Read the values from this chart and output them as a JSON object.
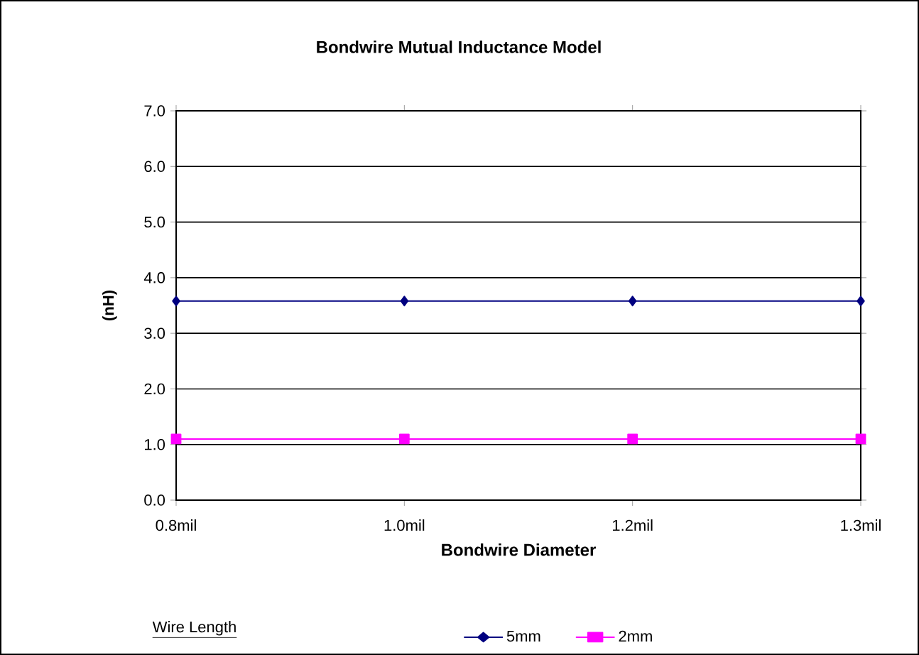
{
  "chart_data": {
    "type": "line",
    "title": "Bondwire Mutual Inductance Model",
    "xlabel": "Bondwire Diameter",
    "ylabel": "(nH)",
    "legend_title": "Wire Length",
    "categories": [
      "0.8mil",
      "1.0mil",
      "1.2mil",
      "1.3mil"
    ],
    "series": [
      {
        "name": "5mm",
        "color": "#000080",
        "marker": "diamond",
        "values": [
          3.58,
          3.58,
          3.58,
          3.58
        ]
      },
      {
        "name": "2mm",
        "color": "#ff00ff",
        "marker": "square",
        "values": [
          1.1,
          1.1,
          1.1,
          1.1
        ]
      }
    ],
    "ylim": [
      0,
      7
    ],
    "yticks": [
      {
        "value": 0,
        "label": "0.0"
      },
      {
        "value": 1,
        "label": "1.0"
      },
      {
        "value": 2,
        "label": "2.0"
      },
      {
        "value": 3,
        "label": "3.0"
      },
      {
        "value": 4,
        "label": "4.0"
      },
      {
        "value": 5,
        "label": "5.0"
      },
      {
        "value": 6,
        "label": "6.0"
      },
      {
        "value": 7,
        "label": "7.0"
      }
    ],
    "grid": "y",
    "legend": "bottom"
  }
}
